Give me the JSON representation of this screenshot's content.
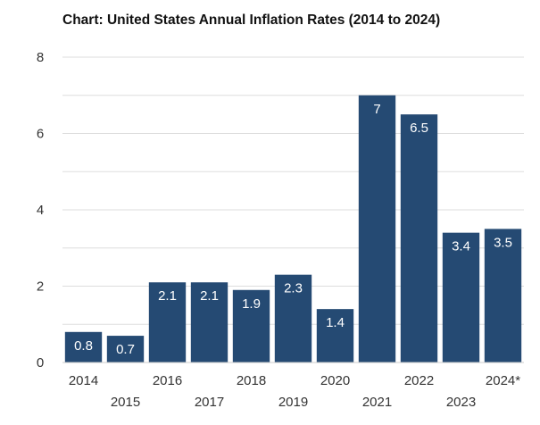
{
  "chart_data": {
    "type": "bar",
    "title": "Chart: United States Annual Inflation Rates (2014 to 2024)",
    "xlabel": "",
    "ylabel": "",
    "categories": [
      "2014",
      "2015",
      "2016",
      "2017",
      "2018",
      "2019",
      "2020",
      "2021",
      "2022",
      "2023",
      "2024*"
    ],
    "values": [
      0.8,
      0.7,
      2.1,
      2.1,
      1.9,
      2.3,
      1.4,
      7,
      6.5,
      3.4,
      3.5
    ],
    "data_labels": [
      "0.8",
      "0.7",
      "2.1",
      "2.1",
      "1.9",
      "2.3",
      "1.4",
      "7",
      "6.5",
      "3.4",
      "3.5"
    ],
    "ylim": [
      0,
      8
    ],
    "yticks": [
      0,
      2,
      4,
      6,
      8
    ],
    "grid": true,
    "bar_color": "#254a73",
    "grid_color": "#dddddd"
  }
}
